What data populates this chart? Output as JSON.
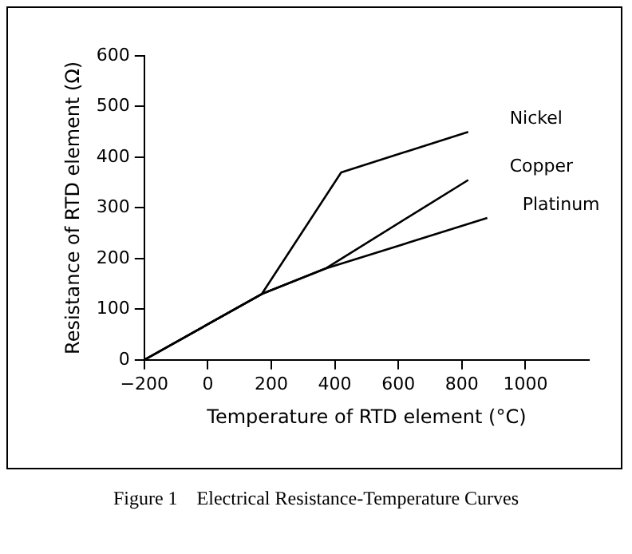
{
  "chart_data": {
    "type": "line",
    "title": "Figure 1    Electrical Resistance-Temperature Curves",
    "xlabel": "Temperature of RTD element (°C)",
    "ylabel": "Resistance of RTD element (Ω)",
    "series": [
      {
        "name": "Nickel",
        "color": "#000000",
        "x": [
          -200,
          170,
          420,
          820
        ],
        "values": [
          0,
          130,
          370,
          450
        ]
      },
      {
        "name": "Copper",
        "color": "#000000",
        "x": [
          -200,
          170,
          370,
          820
        ],
        "values": [
          0,
          130,
          180,
          355
        ]
      },
      {
        "name": "Platinum",
        "color": "#000000",
        "x": [
          -200,
          170,
          370,
          880
        ],
        "values": [
          0,
          130,
          180,
          280
        ]
      }
    ],
    "xlim": [
      -200,
      1200
    ],
    "xticks": [
      -200,
      0,
      200,
      400,
      600,
      800,
      1000
    ],
    "ylim": [
      0,
      600
    ],
    "yticks": [
      0,
      100,
      200,
      300,
      400,
      500,
      600
    ],
    "grid": false,
    "legend": false,
    "marker": "none",
    "line_style": "solid"
  }
}
